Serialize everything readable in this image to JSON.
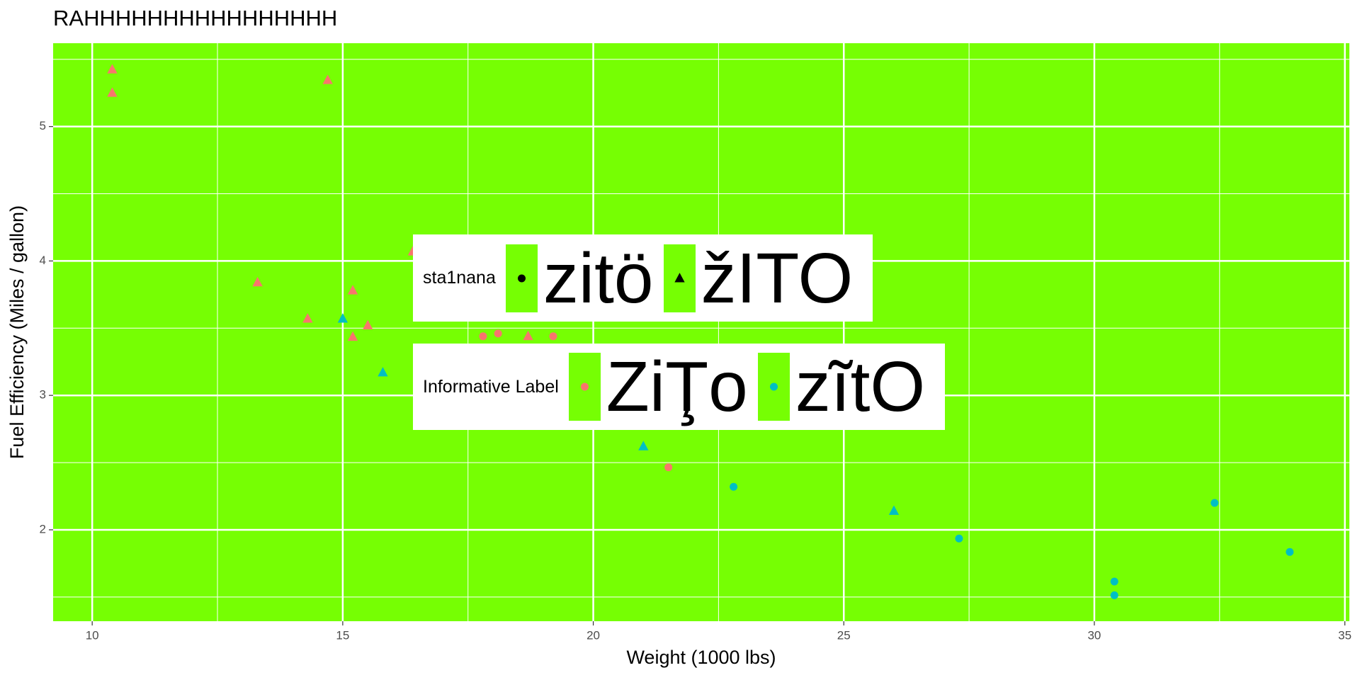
{
  "chart_data": {
    "type": "scatter",
    "title": "RAHHHHHHHHHHHHHHHH",
    "x_label": "Weight (1000 lbs)",
    "y_label": "Fuel Efficiency (Miles / gallon)",
    "xlim": [
      9.22,
      35.09
    ],
    "ylim": [
      1.32,
      5.62
    ],
    "xticks": [
      10,
      15,
      20,
      25,
      30,
      35
    ],
    "yticks": [
      2,
      3,
      4,
      5
    ],
    "x_minor_grid": [
      12.5,
      17.5,
      22.5,
      27.5,
      32.5
    ],
    "y_minor_grid": [
      1.5,
      2.5,
      3.5,
      4.5,
      5.5
    ],
    "grid": true,
    "background": "#76ff03",
    "legends": [
      {
        "title": "sta1nana",
        "entries": [
          "zitö",
          "žITO"
        ],
        "shapes": [
          "circle",
          "triangle"
        ]
      },
      {
        "title": "Informative Label",
        "entries": [
          "ZiŢo",
          "zĩtO"
        ],
        "colors": [
          "#f8766d",
          "#00bfc4"
        ]
      }
    ],
    "series": [
      {
        "shape": "triangle",
        "color": "#f8766d",
        "x": [
          10.4,
          10.4,
          14.7,
          13.3,
          14.3,
          15.2,
          15.2,
          15.5,
          16.4,
          18.7
        ],
        "y": [
          5.424,
          5.25,
          5.345,
          3.84,
          3.57,
          3.78,
          3.435,
          3.52,
          4.07,
          3.44
        ]
      },
      {
        "shape": "circle",
        "color": "#f8766d",
        "x": [
          17.8,
          18.1,
          19.2,
          21.5
        ],
        "y": [
          3.44,
          3.46,
          3.44,
          2.465
        ]
      },
      {
        "shape": "triangle",
        "color": "#00bfc4",
        "x": [
          15.0,
          15.8,
          21.0,
          26.0
        ],
        "y": [
          3.57,
          3.17,
          2.62,
          2.14
        ]
      },
      {
        "shape": "circle",
        "color": "#00bfc4",
        "x": [
          22.8,
          27.3,
          30.4,
          30.4,
          32.4,
          33.9
        ],
        "y": [
          2.32,
          1.935,
          1.615,
          1.513,
          2.2,
          1.835
        ]
      }
    ]
  }
}
